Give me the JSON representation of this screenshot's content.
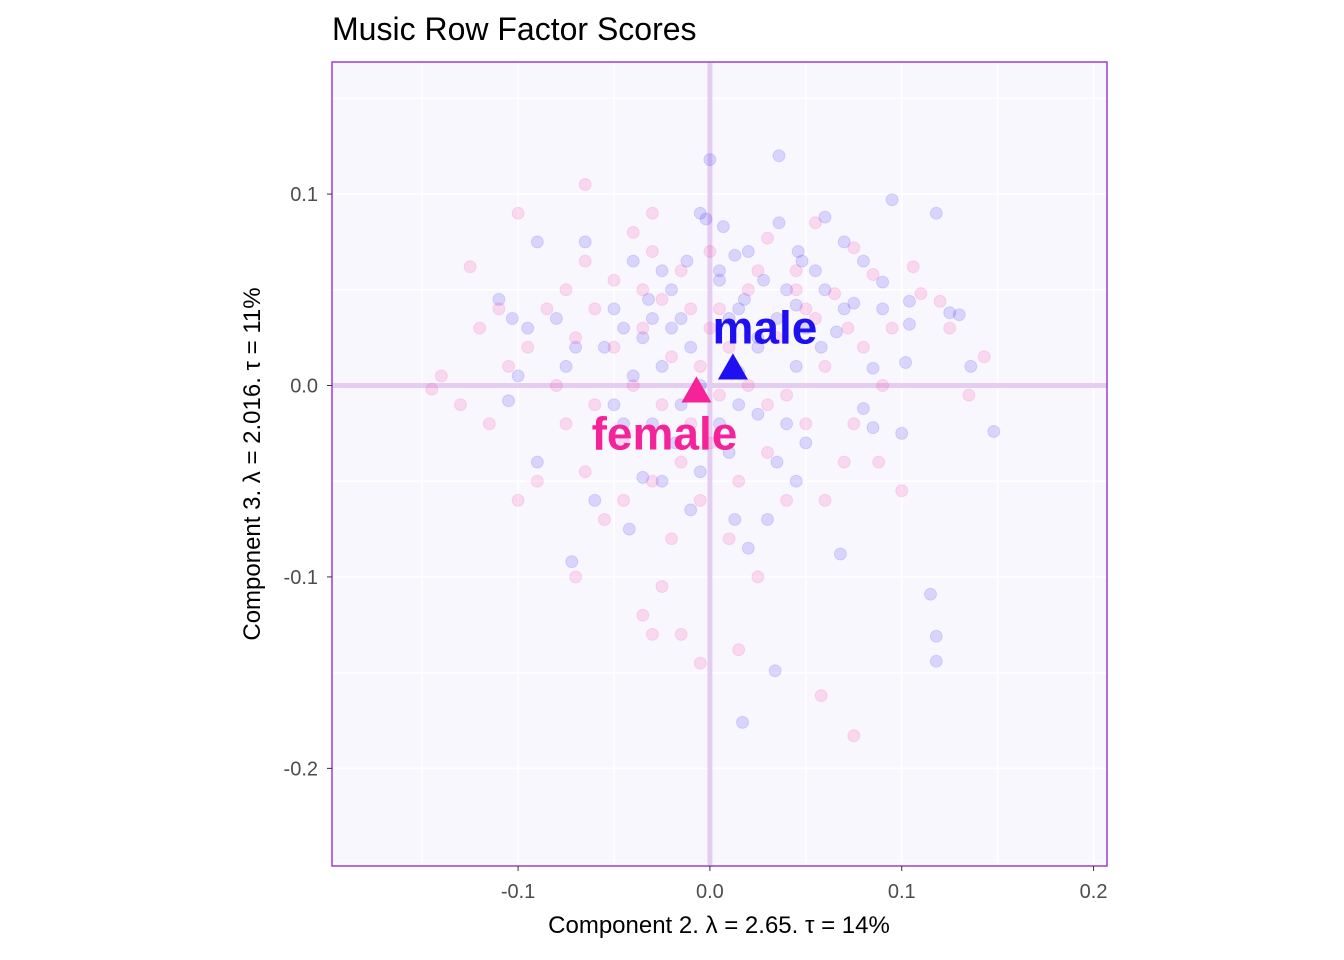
{
  "chart_data": {
    "type": "scatter",
    "title": "Music Row Factor Scores",
    "xlabel": "Component 2.   λ = 2.65.  τ = 14%",
    "ylabel": "Component 3.   λ = 2.016.  τ = 11%",
    "xlim": [
      -0.197,
      0.207
    ],
    "ylim": [
      -0.251,
      0.169
    ],
    "xticks": [
      -0.1,
      0.0,
      0.1,
      0.2
    ],
    "xtick_labels": [
      "-0.1",
      "0.0",
      "0.1",
      "0.2"
    ],
    "yticks": [
      -0.2,
      -0.1,
      0.0,
      0.1
    ],
    "ytick_labels": [
      "-0.2",
      "-0.1",
      "0.0",
      "0.1"
    ],
    "grid": true,
    "colors": {
      "panel_background": "#f9f7fe",
      "panel_border": "#9a3fd6",
      "gridline": "#ffffff",
      "origin_line": "#e5cdf2",
      "male": "#1e10f0",
      "female": "#f5239a"
    },
    "point_opacity": 0.15,
    "group_means": [
      {
        "name": "male",
        "x": 0.012,
        "y": 0.009,
        "color": "#1e10f0"
      },
      {
        "name": "female",
        "x": -0.007,
        "y": -0.003,
        "color": "#f5239a"
      }
    ],
    "series": [
      {
        "name": "male",
        "color": "#1e10f0",
        "points": [
          [
            0.148,
            -0.024
          ],
          [
            0.136,
            0.01
          ],
          [
            0.13,
            0.037
          ],
          [
            0.125,
            0.038
          ],
          [
            0.118,
            0.09
          ],
          [
            0.118,
            -0.144
          ],
          [
            0.118,
            -0.131
          ],
          [
            0.115,
            -0.109
          ],
          [
            0.104,
            0.044
          ],
          [
            0.104,
            0.032
          ],
          [
            0.102,
            0.012
          ],
          [
            0.1,
            -0.025
          ],
          [
            0.095,
            0.097
          ],
          [
            0.09,
            0.054
          ],
          [
            0.09,
            0.04
          ],
          [
            0.085,
            0.009
          ],
          [
            0.085,
            -0.022
          ],
          [
            0.08,
            0.065
          ],
          [
            0.08,
            -0.012
          ],
          [
            0.075,
            0.043
          ],
          [
            0.07,
            0.075
          ],
          [
            0.07,
            0.04
          ],
          [
            0.068,
            -0.088
          ],
          [
            0.066,
            0.028
          ],
          [
            0.06,
            0.088
          ],
          [
            0.06,
            0.05
          ],
          [
            0.058,
            0.02
          ],
          [
            0.055,
            0.06
          ],
          [
            0.05,
            0.03
          ],
          [
            0.05,
            -0.03
          ],
          [
            0.048,
            0.065
          ],
          [
            0.046,
            0.07
          ],
          [
            0.045,
            0.042
          ],
          [
            0.045,
            0.01
          ],
          [
            0.045,
            -0.05
          ],
          [
            0.04,
            0.05
          ],
          [
            0.04,
            -0.02
          ],
          [
            0.036,
            0.12
          ],
          [
            0.036,
            0.085
          ],
          [
            0.035,
            0.035
          ],
          [
            0.035,
            -0.04
          ],
          [
            0.034,
            -0.149
          ],
          [
            0.03,
            -0.07
          ],
          [
            0.028,
            0.055
          ],
          [
            0.025,
            0.025
          ],
          [
            0.025,
            -0.015
          ],
          [
            0.02,
            0.07
          ],
          [
            0.02,
            -0.085
          ],
          [
            0.018,
            0.045
          ],
          [
            0.017,
            -0.176
          ],
          [
            0.015,
            0.007
          ],
          [
            0.015,
            -0.01
          ],
          [
            0.013,
            0.068
          ],
          [
            0.013,
            -0.07
          ],
          [
            0.01,
            0.035
          ],
          [
            0.01,
            -0.035
          ],
          [
            0.007,
            0.083
          ],
          [
            0.005,
            0.055
          ],
          [
            0.005,
            -0.02
          ],
          [
            0.0,
            0.118
          ],
          [
            -0.002,
            0.087
          ],
          [
            -0.005,
            0.09
          ],
          [
            -0.005,
            0.0
          ],
          [
            -0.005,
            -0.045
          ],
          [
            -0.01,
            0.02
          ],
          [
            -0.01,
            -0.065
          ],
          [
            -0.012,
            0.065
          ],
          [
            -0.015,
            -0.01
          ],
          [
            -0.015,
            0.035
          ],
          [
            -0.018,
            -0.03
          ],
          [
            -0.02,
            0.05
          ],
          [
            -0.025,
            0.06
          ],
          [
            -0.025,
            0.01
          ],
          [
            -0.025,
            -0.05
          ],
          [
            -0.03,
            0.035
          ],
          [
            -0.03,
            -0.02
          ],
          [
            -0.032,
            0.045
          ],
          [
            -0.035,
            0.025
          ],
          [
            -0.035,
            -0.048
          ],
          [
            -0.04,
            0.005
          ],
          [
            -0.04,
            0.065
          ],
          [
            -0.042,
            -0.075
          ],
          [
            -0.045,
            0.03
          ],
          [
            -0.045,
            -0.02
          ],
          [
            -0.05,
            0.04
          ],
          [
            -0.05,
            -0.01
          ],
          [
            -0.055,
            0.02
          ],
          [
            -0.06,
            -0.06
          ],
          [
            -0.065,
            0.075
          ],
          [
            -0.07,
            0.02
          ],
          [
            -0.072,
            -0.092
          ],
          [
            -0.075,
            0.01
          ],
          [
            -0.08,
            0.035
          ],
          [
            -0.09,
            -0.04
          ],
          [
            -0.095,
            0.03
          ],
          [
            -0.1,
            0.005
          ],
          [
            -0.103,
            0.035
          ],
          [
            -0.105,
            -0.008
          ],
          [
            -0.11,
            0.045
          ],
          [
            -0.09,
            0.075
          ],
          [
            0.005,
            0.06
          ],
          [
            0.015,
            0.04
          ],
          [
            0.025,
            0.02
          ],
          [
            -0.02,
            0.03
          ]
        ]
      },
      {
        "name": "female",
        "color": "#f5239a",
        "points": [
          [
            0.143,
            0.015
          ],
          [
            0.135,
            -0.005
          ],
          [
            0.125,
            0.03
          ],
          [
            0.12,
            0.044
          ],
          [
            0.11,
            0.048
          ],
          [
            0.106,
            0.062
          ],
          [
            0.1,
            -0.055
          ],
          [
            0.095,
            0.03
          ],
          [
            0.09,
            0.0
          ],
          [
            0.088,
            -0.04
          ],
          [
            0.085,
            0.058
          ],
          [
            0.08,
            0.02
          ],
          [
            0.075,
            0.072
          ],
          [
            0.075,
            -0.02
          ],
          [
            0.075,
            -0.183
          ],
          [
            0.072,
            0.03
          ],
          [
            0.07,
            -0.04
          ],
          [
            0.065,
            0.048
          ],
          [
            0.06,
            0.01
          ],
          [
            0.06,
            -0.06
          ],
          [
            0.058,
            -0.162
          ],
          [
            0.055,
            0.085
          ],
          [
            0.055,
            0.035
          ],
          [
            0.05,
            -0.02
          ],
          [
            0.045,
            0.05
          ],
          [
            0.04,
            -0.005
          ],
          [
            0.04,
            -0.06
          ],
          [
            0.035,
            0.025
          ],
          [
            0.03,
            0.077
          ],
          [
            0.03,
            -0.035
          ],
          [
            0.025,
            0.06
          ],
          [
            0.025,
            -0.1
          ],
          [
            0.02,
            0.0
          ],
          [
            0.02,
            0.05
          ],
          [
            0.015,
            -0.05
          ],
          [
            0.01,
            0.02
          ],
          [
            0.01,
            -0.08
          ],
          [
            0.005,
            -0.005
          ],
          [
            0.005,
            0.04
          ],
          [
            0.0,
            -0.03
          ],
          [
            0.0,
            0.07
          ],
          [
            -0.005,
            0.01
          ],
          [
            -0.005,
            -0.06
          ],
          [
            -0.005,
            -0.145
          ],
          [
            -0.01,
            0.04
          ],
          [
            -0.01,
            -0.02
          ],
          [
            -0.015,
            0.06
          ],
          [
            -0.015,
            -0.04
          ],
          [
            -0.02,
            0.015
          ],
          [
            -0.02,
            -0.08
          ],
          [
            -0.025,
            0.045
          ],
          [
            -0.025,
            -0.01
          ],
          [
            -0.03,
            0.07
          ],
          [
            -0.03,
            -0.05
          ],
          [
            -0.035,
            0.03
          ],
          [
            -0.035,
            -0.12
          ],
          [
            -0.04,
            0.0
          ],
          [
            -0.04,
            0.08
          ],
          [
            -0.045,
            -0.03
          ],
          [
            -0.05,
            0.055
          ],
          [
            -0.05,
            0.02
          ],
          [
            -0.055,
            -0.07
          ],
          [
            -0.06,
            0.04
          ],
          [
            -0.06,
            -0.01
          ],
          [
            -0.065,
            0.065
          ],
          [
            -0.065,
            -0.045
          ],
          [
            -0.07,
            0.025
          ],
          [
            -0.07,
            -0.1
          ],
          [
            -0.075,
            0.05
          ],
          [
            -0.075,
            -0.02
          ],
          [
            -0.08,
            0.0
          ],
          [
            -0.085,
            0.04
          ],
          [
            -0.09,
            -0.05
          ],
          [
            -0.095,
            0.02
          ],
          [
            -0.1,
            -0.06
          ],
          [
            -0.105,
            0.01
          ],
          [
            -0.11,
            0.04
          ],
          [
            -0.115,
            -0.02
          ],
          [
            -0.12,
            0.03
          ],
          [
            -0.125,
            0.062
          ],
          [
            -0.13,
            -0.01
          ],
          [
            -0.14,
            0.005
          ],
          [
            -0.145,
            -0.002
          ],
          [
            -0.065,
            0.105
          ],
          [
            -0.1,
            0.09
          ],
          [
            0.015,
            -0.138
          ],
          [
            -0.015,
            -0.13
          ],
          [
            -0.03,
            -0.13
          ],
          [
            -0.025,
            -0.105
          ],
          [
            -0.03,
            0.09
          ],
          [
            0.045,
            0.06
          ],
          [
            0.05,
            0.04
          ],
          [
            -0.035,
            0.05
          ],
          [
            0.0,
            0.03
          ],
          [
            0.03,
            -0.01
          ],
          [
            -0.045,
            -0.06
          ]
        ]
      }
    ]
  }
}
